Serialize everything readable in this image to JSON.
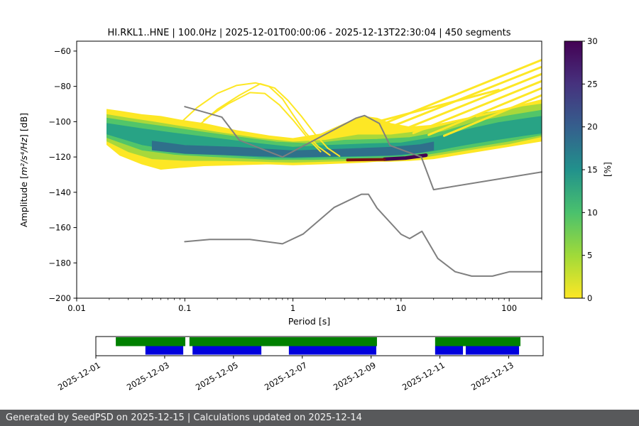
{
  "chart_data": {
    "type": "heatmap",
    "title": "HI.RKL1..HNE | 100.0Hz | 2025-12-01T00:00:06 - 2025-12-13T22:30:04 | 450 segments",
    "xlabel": "Period [s]",
    "ylabel": "Amplitude [m²/s⁴/Hz] [dB]",
    "axes": {
      "x_min": 0.01,
      "x_max": 200,
      "y_min": -200,
      "y_max": -54.4,
      "xticks": [
        {
          "v": 0.01,
          "label": "0.01"
        },
        {
          "v": 0.1,
          "label": "0.1"
        },
        {
          "v": 1,
          "label": "1"
        },
        {
          "v": 10,
          "label": "10"
        },
        {
          "v": 100,
          "label": "100"
        }
      ],
      "yticks": [
        {
          "v": -60,
          "label": "−60"
        },
        {
          "v": -80,
          "label": "−80"
        },
        {
          "v": -100,
          "label": "−100"
        },
        {
          "v": -120,
          "label": "−120"
        },
        {
          "v": -140,
          "label": "−140"
        },
        {
          "v": -160,
          "label": "−160"
        },
        {
          "v": -180,
          "label": "−180"
        },
        {
          "v": -200,
          "label": "−200"
        }
      ]
    },
    "colorbar": {
      "label": "[%]",
      "min": 0,
      "max": 30,
      "ticks": [
        0,
        5,
        10,
        15,
        20,
        25,
        30
      ],
      "stops": [
        [
          0,
          "#fde725"
        ],
        [
          5,
          "#a0da39"
        ],
        [
          10,
          "#4ac16d"
        ],
        [
          15,
          "#21918c"
        ],
        [
          20,
          "#355f8d"
        ],
        [
          25,
          "#46327e"
        ],
        [
          30,
          "#440154"
        ]
      ]
    },
    "ppsd": {
      "bands": [
        {
          "pct": 1,
          "color": "#fde725",
          "points": [
            [
              0.019,
              -93,
              -113
            ],
            [
              0.025,
              -94,
              -119
            ],
            [
              0.04,
              -96,
              -124
            ],
            [
              0.06,
              -97,
              -127
            ],
            [
              0.09,
              -99,
              -126
            ],
            [
              0.15,
              -101,
              -125
            ],
            [
              0.3,
              -105,
              -124.5
            ],
            [
              0.6,
              -108,
              -124
            ],
            [
              1,
              -109.5,
              -124.5
            ],
            [
              1.8,
              -107,
              -124
            ],
            [
              3,
              -101,
              -123.5
            ],
            [
              4.5,
              -97,
              -123
            ],
            [
              6,
              -98,
              -122.5
            ],
            [
              8,
              -101,
              -122.5
            ],
            [
              12,
              -103,
              -122
            ],
            [
              20,
              -102,
              -121
            ],
            [
              40,
              -98,
              -118
            ],
            [
              100,
              -93,
              -114
            ],
            [
              200,
              -88,
              -111
            ]
          ]
        },
        {
          "pct": 4,
          "color": "#a8d83b",
          "points": [
            [
              0.019,
              -96,
              -111
            ],
            [
              0.03,
              -98,
              -117
            ],
            [
              0.05,
              -100,
              -121
            ],
            [
              0.1,
              -103,
              -122
            ],
            [
              0.2,
              -106,
              -122
            ],
            [
              0.5,
              -109.5,
              -122.5
            ],
            [
              1,
              -111.5,
              -123
            ],
            [
              2,
              -110.5,
              -122.5
            ],
            [
              4,
              -107.5,
              -122
            ],
            [
              8,
              -107.5,
              -121.5
            ],
            [
              15,
              -105.5,
              -120.5
            ],
            [
              30,
              -101,
              -117.5
            ],
            [
              60,
              -95,
              -114.5
            ],
            [
              100,
              -92.5,
              -112.5
            ],
            [
              200,
              -90,
              -108.5
            ]
          ]
        },
        {
          "pct": 8,
          "color": "#52c569",
          "points": [
            [
              0.019,
              -98,
              -109
            ],
            [
              0.04,
              -101,
              -116
            ],
            [
              0.08,
              -103.5,
              -118.5
            ],
            [
              0.15,
              -106,
              -119.5
            ],
            [
              0.3,
              -108.5,
              -120.5
            ],
            [
              0.7,
              -111.5,
              -121.5
            ],
            [
              1.5,
              -112.5,
              -121.5
            ],
            [
              3,
              -110.5,
              -121
            ],
            [
              6,
              -110,
              -120.5
            ],
            [
              12,
              -109,
              -120
            ],
            [
              25,
              -105.5,
              -117
            ],
            [
              50,
              -100,
              -114
            ],
            [
              100,
              -96.5,
              -111
            ],
            [
              200,
              -93.5,
              -107.5
            ]
          ]
        },
        {
          "pct": 13,
          "color": "#28a385",
          "points": [
            [
              0.019,
              -101,
              -107
            ],
            [
              0.04,
              -104,
              -113
            ],
            [
              0.08,
              -106.5,
              -116
            ],
            [
              0.2,
              -109.5,
              -118.5
            ],
            [
              0.5,
              -112.5,
              -120
            ],
            [
              1,
              -114.5,
              -120.5
            ],
            [
              2,
              -113.5,
              -120
            ],
            [
              5,
              -112.5,
              -119.5
            ],
            [
              10,
              -112,
              -119
            ],
            [
              20,
              -109,
              -116.5
            ],
            [
              40,
              -104.5,
              -113
            ],
            [
              80,
              -100.5,
              -110
            ],
            [
              150,
              -98,
              -107.5
            ],
            [
              200,
              -97,
              -106.5
            ]
          ]
        },
        {
          "pct": 19,
          "color": "#2f708b",
          "points": [
            [
              0.05,
              -111,
              -116
            ],
            [
              0.1,
              -113.5,
              -118
            ],
            [
              0.3,
              -114.5,
              -119
            ],
            [
              1,
              -116.5,
              -120
            ],
            [
              3,
              -115.5,
              -119.5
            ],
            [
              8,
              -114.5,
              -119
            ],
            [
              15,
              -113,
              -117.5
            ],
            [
              20,
              -111.5,
              -116
            ]
          ]
        }
      ],
      "stripes": {
        "color": "#fde725",
        "width": 3,
        "lines": [
          [
            [
              7,
              -101
            ],
            [
              200,
              -65
            ]
          ],
          [
            [
              8,
              -103
            ],
            [
              200,
              -69
            ]
          ],
          [
            [
              10,
              -105
            ],
            [
              200,
              -73
            ]
          ],
          [
            [
              13,
              -106.5
            ],
            [
              200,
              -77
            ]
          ],
          [
            [
              18,
              -107.5
            ],
            [
              200,
              -81
            ]
          ],
          [
            [
              25,
              -108
            ],
            [
              200,
              -85
            ]
          ],
          [
            [
              6,
              -100
            ],
            [
              80,
              -82
            ]
          ],
          [
            [
              50,
              -97
            ],
            [
              200,
              -88
            ]
          ]
        ]
      },
      "arcs": {
        "color": "#fde725",
        "width": 2,
        "lines": [
          [
            [
              0.09,
              -101
            ],
            [
              0.13,
              -92
            ],
            [
              0.2,
              -84
            ],
            [
              0.3,
              -79.5
            ],
            [
              0.45,
              -78
            ],
            [
              0.6,
              -80
            ],
            [
              0.8,
              -87
            ],
            [
              1.0,
              -96
            ],
            [
              1.3,
              -106
            ],
            [
              1.7,
              -114
            ],
            [
              2.2,
              -119
            ]
          ],
          [
            [
              0.13,
              -103
            ],
            [
              0.2,
              -93
            ],
            [
              0.32,
              -85
            ],
            [
              0.5,
              -78.5
            ],
            [
              0.68,
              -81
            ],
            [
              0.9,
              -88
            ],
            [
              1.2,
              -97
            ],
            [
              1.6,
              -107
            ],
            [
              2.1,
              -115
            ],
            [
              2.7,
              -119.5
            ]
          ],
          [
            [
              0.15,
              -99
            ],
            [
              0.25,
              -90
            ],
            [
              0.4,
              -83.5
            ],
            [
              0.55,
              -84
            ],
            [
              0.75,
              -90.5
            ],
            [
              1.0,
              -99
            ],
            [
              1.4,
              -110
            ],
            [
              1.8,
              -117
            ]
          ]
        ]
      },
      "streaks": [
        {
          "color": "#440154",
          "width": 5,
          "points": [
            [
              7,
              -121.3
            ],
            [
              11,
              -120.6
            ],
            [
              17,
              -119
            ]
          ]
        },
        {
          "color": "#7a1010",
          "width": 4,
          "points": [
            [
              3.2,
              -121.7
            ],
            [
              7,
              -121.4
            ]
          ]
        }
      ]
    },
    "noise_models": {
      "color": "#7f7f7f",
      "width": 2,
      "nhnm": [
        [
          0.1,
          -91.5
        ],
        [
          0.22,
          -97.4
        ],
        [
          0.32,
          -110.5
        ],
        [
          0.8,
          -120
        ],
        [
          3.8,
          -98.1
        ],
        [
          4.6,
          -96.5
        ],
        [
          6.3,
          -101
        ],
        [
          7.9,
          -113.5
        ],
        [
          15.4,
          -120
        ],
        [
          20,
          -138.5
        ],
        [
          200,
          -128.5
        ]
      ],
      "nlnm": [
        [
          0.1,
          -168
        ],
        [
          0.17,
          -166.7
        ],
        [
          0.4,
          -166.7
        ],
        [
          0.8,
          -169.2
        ],
        [
          1.24,
          -163.7
        ],
        [
          2.4,
          -148.6
        ],
        [
          4.3,
          -141.1
        ],
        [
          5,
          -141.1
        ],
        [
          6,
          -149
        ],
        [
          10,
          -163.8
        ],
        [
          12,
          -166.2
        ],
        [
          15.6,
          -162.1
        ],
        [
          21.9,
          -177.5
        ],
        [
          31.6,
          -185
        ],
        [
          45,
          -187.5
        ],
        [
          70,
          -187.5
        ],
        [
          101,
          -185
        ],
        [
          200,
          -185
        ]
      ]
    }
  },
  "labels": {
    "ylabel_prefix": "Amplitude [",
    "ylabel_math": "m²/s⁴/Hz",
    "ylabel_suffix": "] [dB]"
  },
  "coverage": {
    "days_total": 13,
    "green_color": "#008000",
    "blue_color": "#0000dd",
    "green_segments_days": [
      [
        0.58,
        2.6
      ],
      [
        2.72,
        8.17
      ],
      [
        9.86,
        12.34
      ]
    ],
    "blue_segments_days": [
      [
        1.44,
        2.54
      ],
      [
        2.81,
        4.81
      ],
      [
        5.61,
        8.15
      ],
      [
        9.86,
        10.67
      ],
      [
        10.75,
        12.3
      ]
    ],
    "tick_labels": [
      {
        "day": 0,
        "label": "2025-12-01"
      },
      {
        "day": 2,
        "label": "2025-12-03"
      },
      {
        "day": 4,
        "label": "2025-12-05"
      },
      {
        "day": 6,
        "label": "2025-12-07"
      },
      {
        "day": 8,
        "label": "2025-12-09"
      },
      {
        "day": 10,
        "label": "2025-12-11"
      },
      {
        "day": 12,
        "label": "2025-12-13"
      }
    ]
  },
  "footer": {
    "text": "Generated by SeedPSD on 2025-12-15 | Calculations updated on 2025-12-14",
    "bg": "#58595b",
    "fg": "#f2f2f2"
  }
}
